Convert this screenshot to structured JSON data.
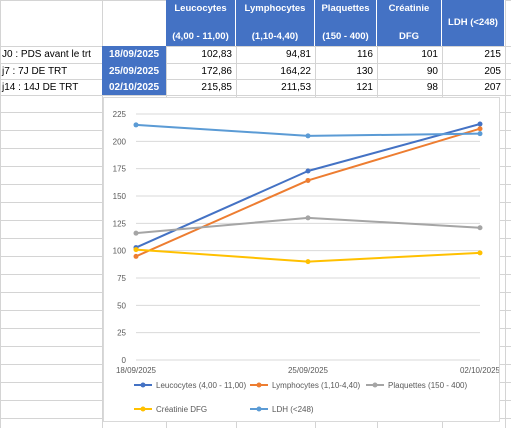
{
  "table": {
    "headers": [
      {
        "line1": "Leucocytes",
        "line2": "(4,00 - 11,00)"
      },
      {
        "line1": "Lymphocytes",
        "line2": "(1,10-4,40)"
      },
      {
        "line1": "Plaquettes",
        "line2": "(150 - 400)"
      },
      {
        "line1": "Créatinie",
        "line2": "DFG"
      },
      {
        "line1": "LDH (<248)",
        "line2": ""
      }
    ],
    "rows": [
      {
        "label": "J0 : PDS avant le trt",
        "date": "18/09/2025",
        "values": [
          "102,83",
          "94,81",
          "116",
          "101",
          "215"
        ]
      },
      {
        "label": "j7 : 7J DE TRT",
        "date": "25/09/2025",
        "values": [
          "172,86",
          "164,22",
          "130",
          "90",
          "205"
        ]
      },
      {
        "label": "j14 : 14J DE TRT",
        "date": "02/10/2025",
        "values": [
          "215,85",
          "211,53",
          "121",
          "98",
          "207"
        ]
      }
    ]
  },
  "chart_data": {
    "type": "line",
    "x": [
      "18/09/2025",
      "25/09/2025",
      "02/10/2025"
    ],
    "ylim": [
      0,
      225
    ],
    "yticks": [
      "0",
      "25",
      "50",
      "75",
      "100",
      "125",
      "150",
      "175",
      "200",
      "225"
    ],
    "grid": true,
    "legend_position": "bottom",
    "series": [
      {
        "name": "Leucocytes (4,00 - 11,00)",
        "color": "#4472c4",
        "values": [
          102.83,
          172.86,
          215.85
        ]
      },
      {
        "name": "Lymphocytes (1,10-4,40)",
        "color": "#ed7d31",
        "values": [
          94.81,
          164.22,
          211.53
        ]
      },
      {
        "name": "Plaquettes (150 - 400)",
        "color": "#a5a5a5",
        "values": [
          116,
          130,
          121
        ]
      },
      {
        "name": "Créatinie DFG",
        "color": "#ffc000",
        "values": [
          101,
          90,
          98
        ]
      },
      {
        "name": "LDH (<248)",
        "color": "#5b9bd5",
        "values": [
          215,
          205,
          207
        ]
      }
    ]
  }
}
